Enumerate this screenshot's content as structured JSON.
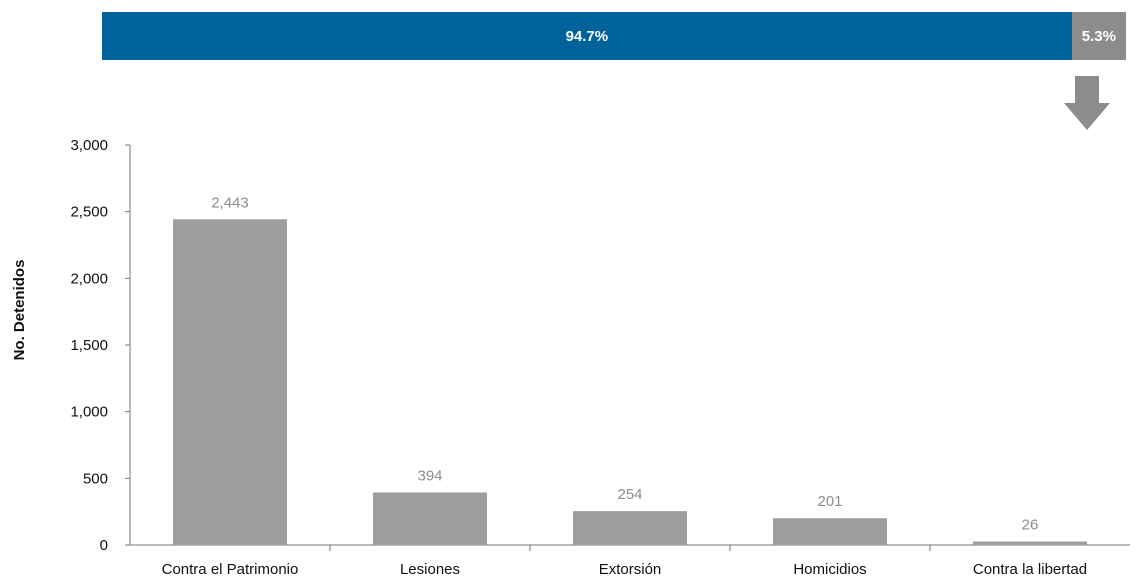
{
  "stacked_share": {
    "segments": [
      {
        "value": 94.7,
        "label": "94.7%",
        "color": "#00629b"
      },
      {
        "value": 5.3,
        "label": "5.3%",
        "color": "#8c8c8c"
      }
    ],
    "arrow_color": "#8c8c8c"
  },
  "chart_data": {
    "type": "bar",
    "categories": [
      "Contra el Patrimonio",
      "Lesiones",
      "Extorsión",
      "Homicidios",
      "Contra la libertad"
    ],
    "values": [
      2443,
      394,
      254,
      201,
      26
    ],
    "value_labels": [
      "2,443",
      "394",
      "254",
      "201",
      "26"
    ],
    "ylabel": "No. Detenidos",
    "xlabel": "",
    "ylim": [
      0,
      3000
    ],
    "yticks": [
      0,
      500,
      1000,
      1500,
      2000,
      2500,
      3000
    ],
    "ytick_labels": [
      "0",
      "500",
      "1,000",
      "1,500",
      "2,000",
      "2,500",
      "3,000"
    ],
    "bar_color": "#9d9d9c",
    "value_label_color": "#8c8c8c",
    "grid": false,
    "legend": "none"
  }
}
